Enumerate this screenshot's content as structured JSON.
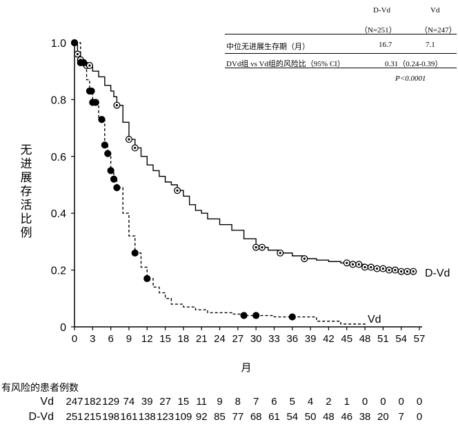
{
  "chart_data": {
    "type": "line",
    "subtype": "kaplan-meier",
    "ylabel": "无进展存活比例",
    "xlabel": "月",
    "xlim": [
      0,
      57
    ],
    "ylim": [
      0,
      1.0
    ],
    "x_ticks": [
      0,
      3,
      6,
      9,
      12,
      15,
      18,
      21,
      24,
      27,
      30,
      33,
      36,
      39,
      42,
      45,
      48,
      51,
      54,
      57
    ],
    "y_ticks": [
      "0",
      "0.2",
      "0.4",
      "0.6",
      "0.8",
      "1.0"
    ],
    "grid": false,
    "series": [
      {
        "name": "D-Vd",
        "line_style": "solid",
        "marker": "open-circle",
        "x": [
          0,
          0.5,
          1,
          1.5,
          2,
          3,
          4,
          5,
          6,
          6.5,
          7,
          8,
          9,
          10,
          11,
          12,
          13,
          14,
          15,
          16,
          17,
          18,
          19,
          20,
          21,
          22,
          24,
          26,
          28,
          30,
          32,
          34,
          36,
          38,
          40,
          42,
          44,
          46,
          48,
          50,
          52,
          54,
          56
        ],
        "y": [
          1.0,
          0.96,
          0.94,
          0.93,
          0.92,
          0.9,
          0.88,
          0.85,
          0.83,
          0.81,
          0.78,
          0.72,
          0.66,
          0.63,
          0.6,
          0.57,
          0.55,
          0.53,
          0.51,
          0.5,
          0.48,
          0.46,
          0.43,
          0.41,
          0.4,
          0.38,
          0.36,
          0.34,
          0.31,
          0.28,
          0.27,
          0.26,
          0.25,
          0.24,
          0.235,
          0.23,
          0.225,
          0.22,
          0.21,
          0.205,
          0.2,
          0.195,
          0.195
        ],
        "censor_x": [
          0,
          0.5,
          1,
          1.5,
          2,
          2.5,
          7,
          9,
          10,
          17,
          30,
          31,
          34,
          38,
          45,
          46,
          47,
          48,
          49,
          50,
          51,
          52,
          53,
          54,
          55,
          56
        ]
      },
      {
        "name": "Vd",
        "line_style": "dashed",
        "marker": "filled-circle",
        "x": [
          0,
          1,
          2,
          2.5,
          3,
          4,
          5,
          5.5,
          6,
          6.5,
          7,
          8,
          9,
          10,
          11,
          12,
          13,
          14,
          15,
          16,
          18,
          20,
          22,
          24,
          26,
          28,
          30,
          33,
          36,
          40,
          44,
          48
        ],
        "y": [
          1.0,
          0.93,
          0.87,
          0.83,
          0.79,
          0.73,
          0.64,
          0.61,
          0.55,
          0.52,
          0.49,
          0.4,
          0.32,
          0.26,
          0.21,
          0.17,
          0.14,
          0.12,
          0.1,
          0.08,
          0.07,
          0.06,
          0.05,
          0.05,
          0.045,
          0.04,
          0.04,
          0.035,
          0.035,
          0.02,
          0.01,
          0.0
        ],
        "censor_x": [
          0,
          1,
          1.5,
          2.5,
          2.8,
          3,
          3.5,
          4.5,
          5,
          5.5,
          6,
          6.5,
          7,
          10,
          12,
          28,
          30,
          36
        ]
      }
    ],
    "labels": {
      "d_vd": "D-Vd",
      "vd": "Vd"
    }
  },
  "summary": {
    "col1_name": "D-Vd",
    "col1_n": "（N=251）",
    "col2_name": "Vd",
    "col2_n": "（N=247）",
    "row1_label": "中位无进展生存期（月）",
    "row1_v1": "16.7",
    "row1_v2": "7.1",
    "row2_label": "DVd组  vs Vd组的风险比（95% CI）",
    "row2_value": "0.31（0.24-0.39）",
    "pvalue": "P<0.0001"
  },
  "risk_table": {
    "title": "有风险的患者例数",
    "times": [
      0,
      3,
      6,
      9,
      12,
      15,
      18,
      21,
      24,
      27,
      30,
      33,
      36,
      39,
      42,
      45,
      48,
      51,
      54,
      57
    ],
    "rows": [
      {
        "label": "Vd",
        "values": [
          "247",
          "182",
          "129",
          "74",
          "39",
          "27",
          "15",
          "11",
          "9",
          "8",
          "7",
          "6",
          "5",
          "4",
          "2",
          "1",
          "0",
          "0",
          "0",
          "0"
        ]
      },
      {
        "label": "D-Vd",
        "values": [
          "251",
          "215",
          "198",
          "161",
          "138",
          "123",
          "109",
          "92",
          "85",
          "77",
          "68",
          "61",
          "54",
          "50",
          "48",
          "46",
          "38",
          "20",
          "7",
          "0"
        ]
      }
    ]
  }
}
